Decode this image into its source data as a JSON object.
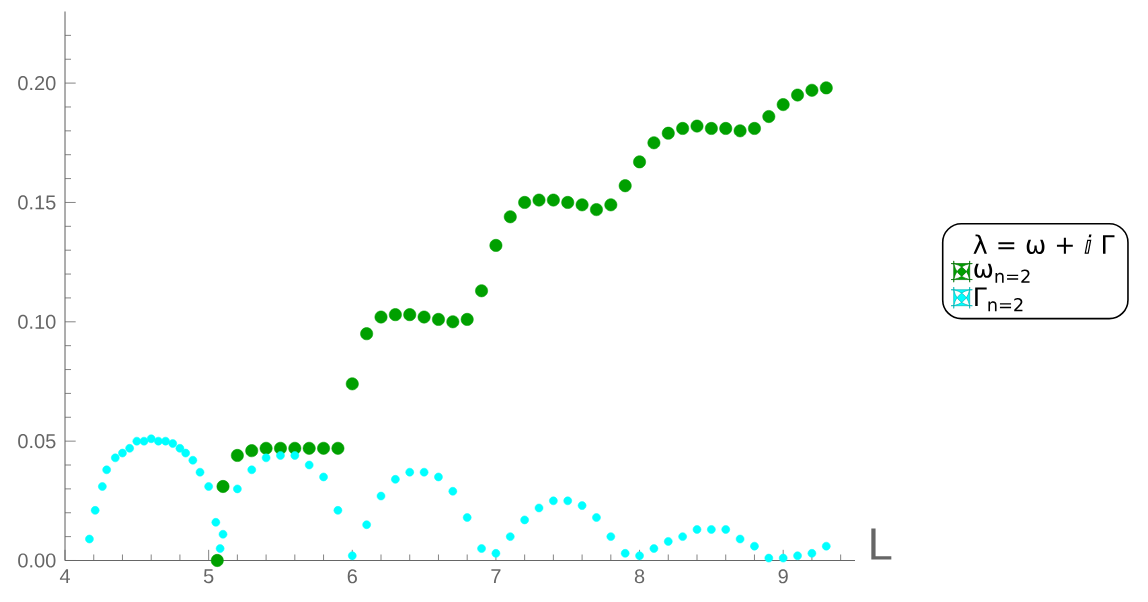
{
  "chart_data": {
    "type": "scatter",
    "xlabel": "L",
    "legend_title": "λ = ω + ⅈ Γ",
    "xlim": [
      4,
      9.5
    ],
    "ylim": [
      0,
      0.23
    ],
    "xticks": [
      4,
      5,
      6,
      7,
      8,
      9,
      {
        "value": 4.2,
        "label": null
      },
      {
        "value": 4.4,
        "label": null
      },
      {
        "value": 4.6,
        "label": null
      },
      {
        "value": 4.8,
        "label": null
      },
      {
        "value": 5.2,
        "label": null
      },
      {
        "value": 5.4,
        "label": null
      },
      {
        "value": 5.6,
        "label": null
      },
      {
        "value": 5.8,
        "label": null
      },
      {
        "value": 6.2,
        "label": null
      },
      {
        "value": 6.4,
        "label": null
      },
      {
        "value": 6.6,
        "label": null
      },
      {
        "value": 6.8,
        "label": null
      },
      {
        "value": 7.2,
        "label": null
      },
      {
        "value": 7.4,
        "label": null
      },
      {
        "value": 7.6,
        "label": null
      },
      {
        "value": 7.8,
        "label": null
      },
      {
        "value": 8.2,
        "label": null
      },
      {
        "value": 8.4,
        "label": null
      },
      {
        "value": 8.6,
        "label": null
      },
      {
        "value": 8.8,
        "label": null
      },
      {
        "value": 9.2,
        "label": null
      },
      {
        "value": 9.4,
        "label": null
      }
    ],
    "yticks": [
      {
        "value": 0,
        "label": "0.00"
      },
      {
        "value": 0.05,
        "label": "0.05"
      },
      {
        "value": 0.1,
        "label": "0.10"
      },
      {
        "value": 0.15,
        "label": "0.15"
      },
      {
        "value": 0.2,
        "label": "0.20"
      },
      {
        "value": 0.01,
        "label": null
      },
      {
        "value": 0.02,
        "label": null
      },
      {
        "value": 0.03,
        "label": null
      },
      {
        "value": 0.04,
        "label": null
      },
      {
        "value": 0.06,
        "label": null
      },
      {
        "value": 0.07,
        "label": null
      },
      {
        "value": 0.08,
        "label": null
      },
      {
        "value": 0.09,
        "label": null
      },
      {
        "value": 0.11,
        "label": null
      },
      {
        "value": 0.12,
        "label": null
      },
      {
        "value": 0.13,
        "label": null
      },
      {
        "value": 0.14,
        "label": null
      },
      {
        "value": 0.16,
        "label": null
      },
      {
        "value": 0.17,
        "label": null
      },
      {
        "value": 0.18,
        "label": null
      },
      {
        "value": 0.19,
        "label": null
      },
      {
        "value": 0.21,
        "label": null
      },
      {
        "value": 0.22,
        "label": null
      }
    ],
    "marker": "circle",
    "legend": "right",
    "series": [
      {
        "name": "ω$_{n=2}$",
        "color": "#00a000",
        "x": [
          5.06,
          5.1,
          5.2,
          5.3,
          5.4,
          5.5,
          5.6,
          5.7,
          5.8,
          5.9,
          6.0,
          6.1,
          6.2,
          6.3,
          6.4,
          6.5,
          6.6,
          6.7,
          6.8,
          6.9,
          7.0,
          7.1,
          7.2,
          7.3,
          7.4,
          7.5,
          7.6,
          7.7,
          7.8,
          7.9,
          8.0,
          8.1,
          8.2,
          8.3,
          8.4,
          8.5,
          8.6,
          8.7,
          8.8,
          8.9,
          9.0,
          9.1,
          9.2,
          9.3
        ],
        "values": [
          0.0,
          0.031,
          0.044,
          0.046,
          0.047,
          0.047,
          0.047,
          0.047,
          0.047,
          0.047,
          0.074,
          0.095,
          0.102,
          0.103,
          0.103,
          0.102,
          0.101,
          0.1,
          0.101,
          0.113,
          0.132,
          0.144,
          0.15,
          0.151,
          0.151,
          0.15,
          0.149,
          0.147,
          0.149,
          0.157,
          0.167,
          0.175,
          0.179,
          0.181,
          0.182,
          0.181,
          0.181,
          0.18,
          0.181,
          0.186,
          0.191,
          0.195,
          0.197,
          0.198
        ]
      },
      {
        "name": "Γ$_{n=2}$",
        "color": "#00ffff",
        "x": [
          4.17,
          4.21,
          4.26,
          4.29,
          4.35,
          4.4,
          4.45,
          4.5,
          4.55,
          4.6,
          4.65,
          4.7,
          4.75,
          4.8,
          4.84,
          4.89,
          4.94,
          5.0,
          5.05,
          5.08,
          5.1,
          5.2,
          5.3,
          5.4,
          5.5,
          5.6,
          5.7,
          5.8,
          5.9,
          6.0,
          6.1,
          6.2,
          6.3,
          6.4,
          6.5,
          6.6,
          6.7,
          6.8,
          6.9,
          7.0,
          7.1,
          7.2,
          7.3,
          7.4,
          7.5,
          7.6,
          7.7,
          7.8,
          7.9,
          8.0,
          8.1,
          8.2,
          8.3,
          8.4,
          8.5,
          8.6,
          8.7,
          8.8,
          8.9,
          9.0,
          9.1,
          9.2,
          9.3
        ],
        "values": [
          0.009,
          0.021,
          0.031,
          0.038,
          0.043,
          0.045,
          0.047,
          0.05,
          0.05,
          0.051,
          0.05,
          0.05,
          0.049,
          0.047,
          0.045,
          0.042,
          0.037,
          0.031,
          0.016,
          0.005,
          0.011,
          0.03,
          0.038,
          0.043,
          0.044,
          0.044,
          0.04,
          0.035,
          0.021,
          0.002,
          0.015,
          0.027,
          0.034,
          0.037,
          0.037,
          0.035,
          0.029,
          0.018,
          0.005,
          0.003,
          0.01,
          0.017,
          0.022,
          0.025,
          0.025,
          0.023,
          0.018,
          0.01,
          0.003,
          0.002,
          0.005,
          0.008,
          0.01,
          0.013,
          0.013,
          0.013,
          0.009,
          0.006,
          0.001,
          0.001,
          0.002,
          0.003,
          0.006
        ]
      }
    ]
  }
}
